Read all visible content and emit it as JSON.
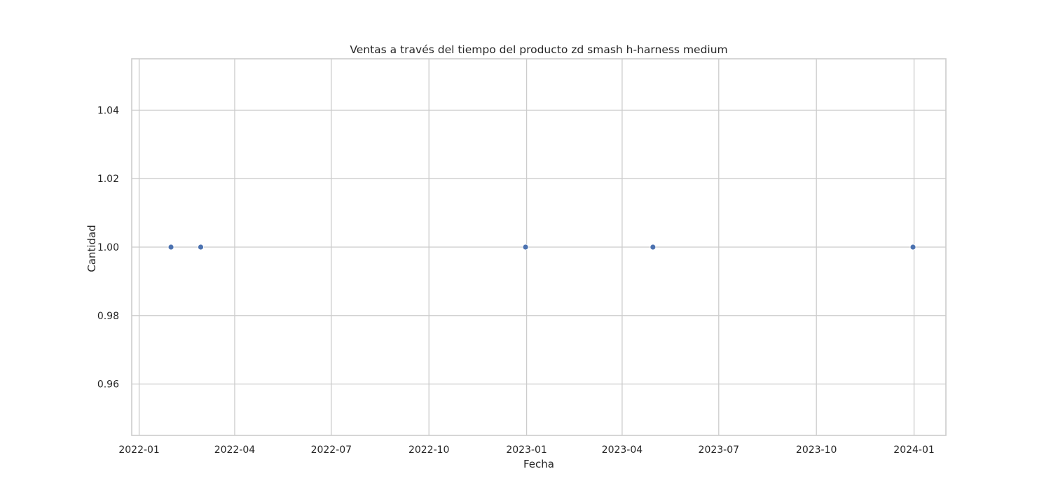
{
  "chart_data": {
    "type": "scatter",
    "title": "Ventas a través del tiempo del producto zd smash h-harness medium",
    "xlabel": "Fecha",
    "ylabel": "Cantidad",
    "x_ticks": [
      "2022-01-01",
      "2022-04-01",
      "2022-07-01",
      "2022-10-01",
      "2023-01-01",
      "2023-04-01",
      "2023-07-01",
      "2023-10-01",
      "2024-01-01"
    ],
    "x_tick_labels": [
      "2022-01",
      "2022-04",
      "2022-07",
      "2022-10",
      "2023-01",
      "2023-04",
      "2023-07",
      "2023-10",
      "2024-01"
    ],
    "xlim": [
      "2021-12-25",
      "2024-01-31"
    ],
    "y_ticks": [
      0.96,
      0.98,
      1.0,
      1.02,
      1.04
    ],
    "y_tick_labels": [
      "0.96",
      "0.98",
      "1.00",
      "1.02",
      "1.04"
    ],
    "ylim": [
      0.945,
      1.055
    ],
    "grid": true,
    "marker_color": "#4c72b0",
    "points": [
      {
        "x": "2022-01-31",
        "y": 1
      },
      {
        "x": "2022-02-28",
        "y": 1
      },
      {
        "x": "2022-12-31",
        "y": 1
      },
      {
        "x": "2023-04-30",
        "y": 1
      },
      {
        "x": "2023-12-31",
        "y": 1
      }
    ]
  }
}
